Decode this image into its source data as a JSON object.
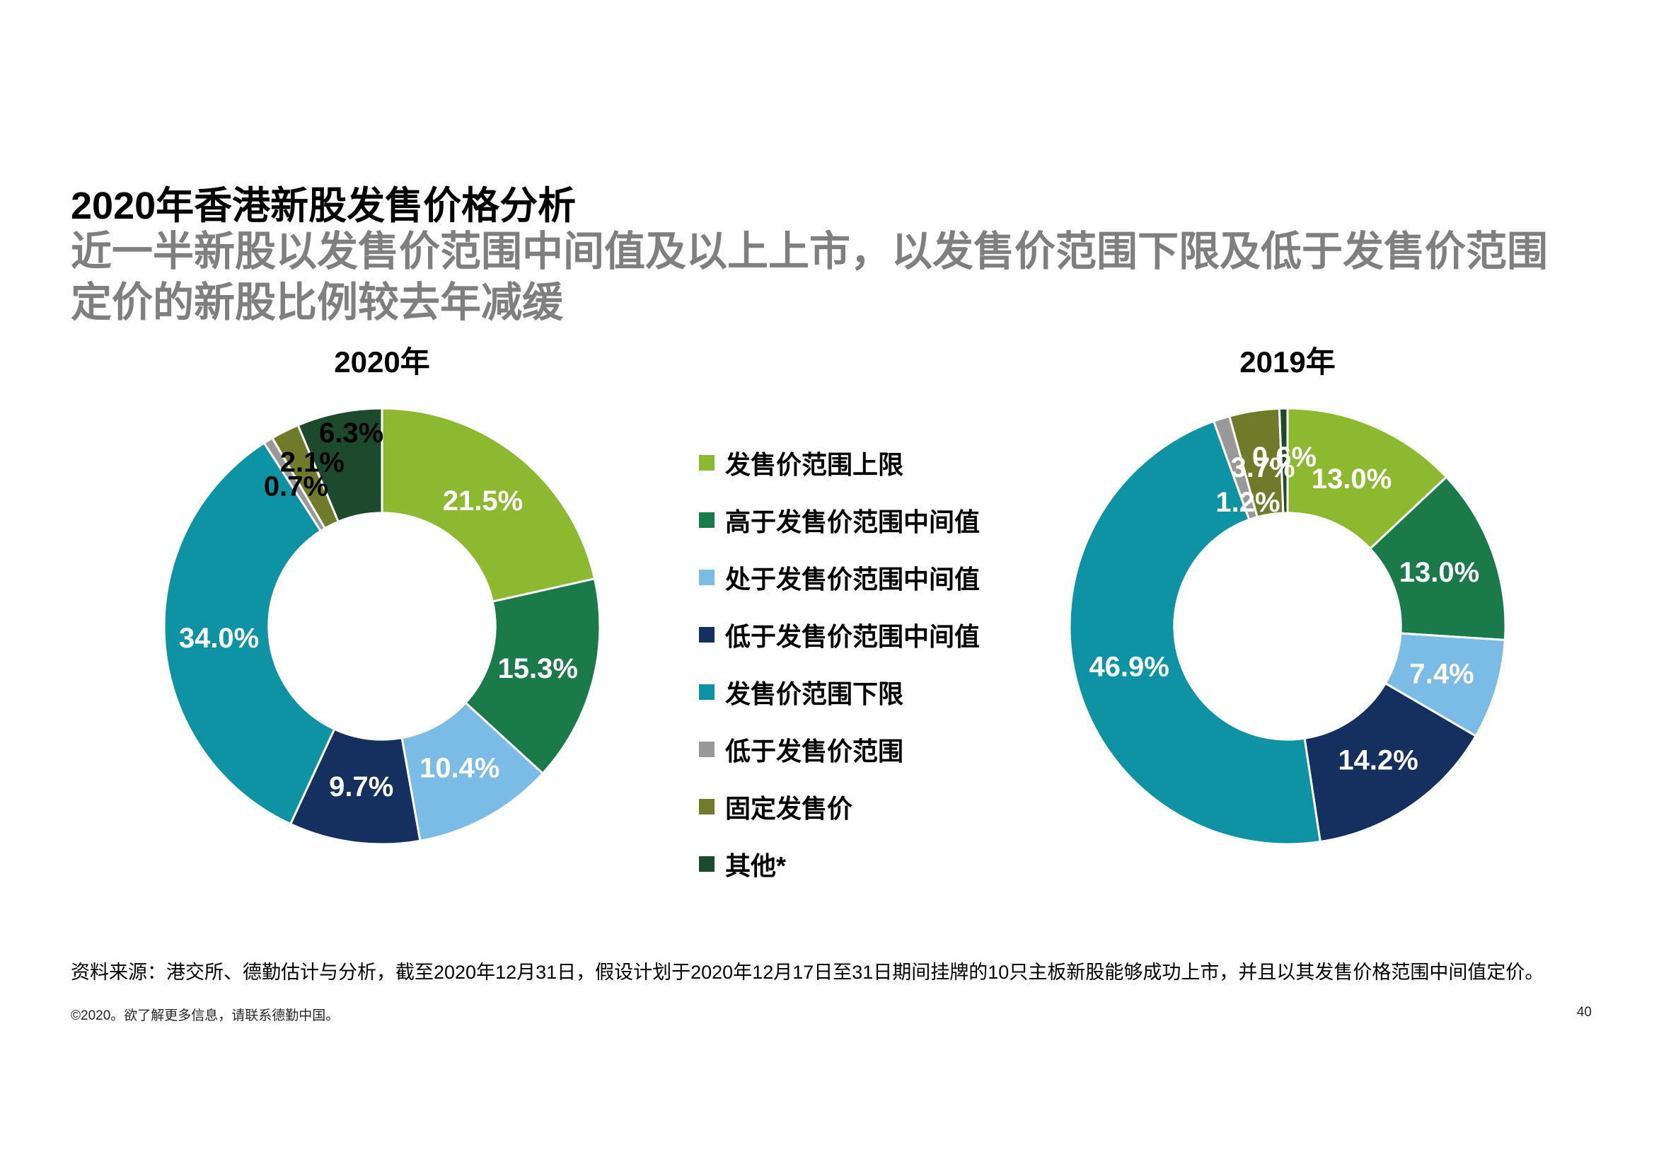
{
  "page": {
    "title": "2020年香港新股发售价格分析",
    "subtitle": "近一半新股以发售价范围中间值及以上上市，以发售价范围下限及低于发售价范围定价的新股比例较去年减缓",
    "source": "资料来源：港交所、德勤估计与分析，截至2020年12月31日，假设计划于2020年12月17日至31日期间挂牌的10只主板新股能够成功上市，并且以其发售价格范围中间值定价。",
    "copyright": "©2020。欲了解更多信息，请联系德勤中国。",
    "page_number": "40"
  },
  "colors": {
    "light_green": "#8CB92F",
    "dark_green": "#1A7A4A",
    "light_blue": "#7ABCE6",
    "navy": "#15305E",
    "teal": "#0E93A4",
    "gray": "#999999",
    "olive": "#6F7B28",
    "forest": "#1D4A2C",
    "subtitle_gray": "#7f7f7f"
  },
  "legend": {
    "items": [
      {
        "label": "发售价范围上限",
        "color": "#8CB92F"
      },
      {
        "label": "高于发售价范围中间值",
        "color": "#1A7A4A"
      },
      {
        "label": "处于发售价范围中间值",
        "color": "#7ABCE6"
      },
      {
        "label": "低于发售价范围中间值",
        "color": "#15305E"
      },
      {
        "label": "发售价范围下限",
        "color": "#0E93A4"
      },
      {
        "label": "低于发售价范围",
        "color": "#999999"
      },
      {
        "label": "固定发售价",
        "color": "#6F7B28"
      },
      {
        "label": "其他*",
        "color": "#1D4A2C"
      }
    ]
  },
  "chart_data": [
    {
      "type": "pie",
      "donut": true,
      "donut_hole": 0.52,
      "title": "2020年",
      "categories": [
        "发售价范围上限",
        "高于发售价范围中间值",
        "处于发售价范围中间值",
        "低于发售价范围中间值",
        "发售价范围下限",
        "低于发售价范围",
        "固定发售价",
        "其他*"
      ],
      "values": [
        21.5,
        15.3,
        10.4,
        9.7,
        34.0,
        0.7,
        2.1,
        6.3
      ],
      "labels": [
        "21.5%",
        "15.3%",
        "10.4%",
        "9.7%",
        "34.0%",
        "0.7%",
        "2.1%",
        "6.3%"
      ],
      "colors": [
        "#8CB92F",
        "#1A7A4A",
        "#7ABCE6",
        "#15305E",
        "#0E93A4",
        "#999999",
        "#6F7B28",
        "#1D4A2C"
      ],
      "label_colors": [
        "#ffffff",
        "#ffffff",
        "#ffffff",
        "#ffffff",
        "#ffffff",
        "#000000",
        "#000000",
        "#000000"
      ],
      "label_radius": [
        0.74,
        0.74,
        0.74,
        0.74,
        0.75,
        0.755,
        0.82,
        0.9
      ],
      "label_angles": [
        null,
        null,
        null,
        null,
        null,
        null,
        337,
        351
      ]
    },
    {
      "type": "pie",
      "donut": true,
      "donut_hole": 0.52,
      "title": "2019年",
      "categories": [
        "发售价范围上限",
        "高于发售价范围中间值",
        "处于发售价范围中间值",
        "低于发售价范围中间值",
        "发售价范围下限",
        "低于发售价范围",
        "固定发售价",
        "其他*"
      ],
      "values": [
        13.0,
        13.0,
        7.4,
        14.2,
        46.9,
        1.2,
        3.7,
        0.6
      ],
      "labels": [
        "13.0%",
        "13.0%",
        "7.4%",
        "14.2%",
        "46.9%",
        "1.2%",
        "3.7%",
        "0.6%"
      ],
      "colors": [
        "#8CB92F",
        "#1A7A4A",
        "#7ABCE6",
        "#15305E",
        "#0E93A4",
        "#999999",
        "#6F7B28",
        "#1D4A2C"
      ],
      "label_colors": [
        "#ffffff",
        "#ffffff",
        "#ffffff",
        "#ffffff",
        "#ffffff",
        "#ffffff",
        "#ffffff",
        "#ffffff"
      ],
      "label_radius": [
        0.74,
        0.74,
        0.74,
        0.74,
        0.75,
        0.6,
        0.74,
        0.78
      ],
      "label_angles": [
        null,
        null,
        null,
        null,
        null,
        null,
        null,
        null
      ]
    }
  ]
}
